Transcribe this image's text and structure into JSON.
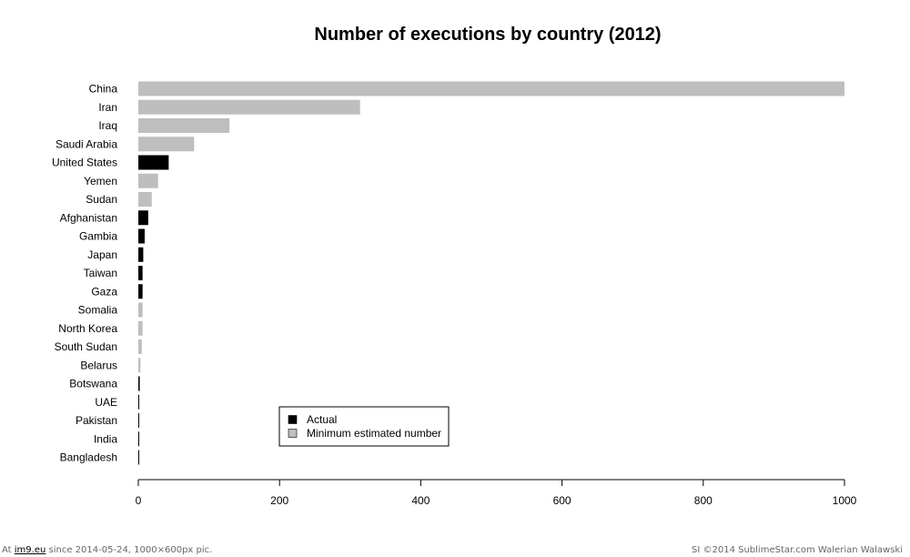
{
  "chart_data": {
    "type": "bar",
    "orientation": "horizontal",
    "title": "Number of executions by country (2012)",
    "xlabel": "",
    "ylabel": "",
    "xlim": [
      0,
      1000
    ],
    "xticks": [
      0,
      200,
      400,
      600,
      800,
      1000
    ],
    "grid": false,
    "legend_position": "bottom-left",
    "series": [
      {
        "name": "Actual",
        "color": "#000000"
      },
      {
        "name": "Minimum estimated number",
        "color": "#bebebe"
      }
    ],
    "bars": [
      {
        "country": "China",
        "value": 1000,
        "series": "Minimum estimated number"
      },
      {
        "country": "Iran",
        "value": 314,
        "series": "Minimum estimated number"
      },
      {
        "country": "Iraq",
        "value": 129,
        "series": "Minimum estimated number"
      },
      {
        "country": "Saudi Arabia",
        "value": 79,
        "series": "Minimum estimated number"
      },
      {
        "country": "United States",
        "value": 43,
        "series": "Actual"
      },
      {
        "country": "Yemen",
        "value": 28,
        "series": "Minimum estimated number"
      },
      {
        "country": "Sudan",
        "value": 19,
        "series": "Minimum estimated number"
      },
      {
        "country": "Afghanistan",
        "value": 14,
        "series": "Actual"
      },
      {
        "country": "Gambia",
        "value": 9,
        "series": "Actual"
      },
      {
        "country": "Japan",
        "value": 7,
        "series": "Actual"
      },
      {
        "country": "Taiwan",
        "value": 6,
        "series": "Actual"
      },
      {
        "country": "Gaza",
        "value": 6,
        "series": "Actual"
      },
      {
        "country": "Somalia",
        "value": 6,
        "series": "Minimum estimated number"
      },
      {
        "country": "North Korea",
        "value": 6,
        "series": "Minimum estimated number"
      },
      {
        "country": "South Sudan",
        "value": 5,
        "series": "Minimum estimated number"
      },
      {
        "country": "Belarus",
        "value": 3,
        "series": "Minimum estimated number"
      },
      {
        "country": "Botswana",
        "value": 2,
        "series": "Actual"
      },
      {
        "country": "UAE",
        "value": 1,
        "series": "Actual"
      },
      {
        "country": "Pakistan",
        "value": 1,
        "series": "Actual"
      },
      {
        "country": "India",
        "value": 1,
        "series": "Actual"
      },
      {
        "country": "Bangladesh",
        "value": 1,
        "series": "Actual"
      }
    ]
  },
  "footer": {
    "left_prefix": "At",
    "left_link": "im9.eu",
    "left_suffix": "since 2014-05-24, 1000×600px pic.",
    "right": "SI ©2014 SublimeStar.com Walerian Walawski"
  }
}
